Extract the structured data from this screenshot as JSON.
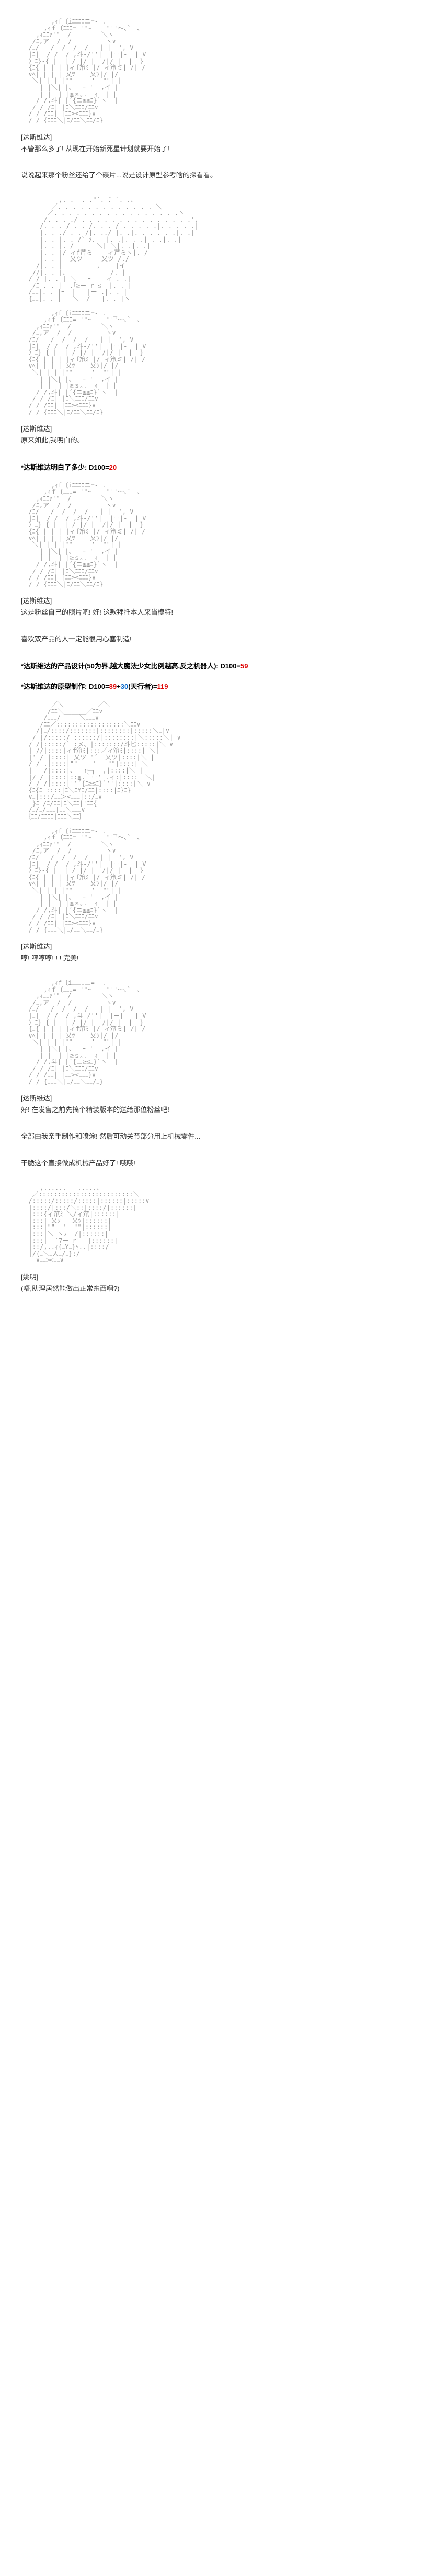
{
  "ascii": {
    "girl_headband": "        ,ｨf〔iﾆﾆﾆﾆニ=- .  _\n      ,ｨｆ〔ﾆﾆﾆ= '\"~    \"''〜､`　､\n    ,ｨﾆﾆｧ'\"  /        ＼ヽ\n   /ﾆ,ア  /  /         ヽ∨\n  /ﾆ/   /  /  /  /|  | |  ', V\n  |ﾆ|  / /  / ,斗-/''|  |ー|-  | V\n  〉ﾆ}-{ |  | / |/ |  /|/ |  |  }\n  {ﾆ{ | | | |ィf笊ﾐ |/ ィ笊ミ| /| /\n  ∨ﾍ| | | | 乂ﾂ    乂ﾂ|/ |/\n   ＼| | | |\"\"     '  \"\"| |\n     | |＼| |、  ｰ '  ,イ |\n     | |  | |≧ｓ｡.  ｨ  | |\n    / /,斗| |´{ニ≧≦ﾆ}`ヽ| |\n   / / /ﾆ| |ﾆ＼ﾆﾆﾆ/ﾆﾆ∨\n  / / /ﾆﾆ| |ﾆﾆ><ﾆﾆﾆ}∨\n  / / {ﾆﾆﾆ＼|ﾆ/ﾆﾆ＼ﾆﾆ/ﾆ}",
    "boy_profile": "          ,. .-‐. .\"´. ̄. `. .、\n        ／. . . . . . . . . . . . . ＼\n       ／. . . . . . . . . . . . . . . . .ヽ\n      /. . . ./ . . . . . . . . . . . . . . .',\n     /. . . / . . /. . . /|. . . . .|. . . . .|\n     |. . ./ . . /|. ../ |. .|. . .|. . .|. .|\n     |. . |. . /`|ﾒ、  |. .|. ._.|_. .|. .|\n     |. . |. /      ＼| ＼|. .|. .|\n     |. . |/ ィf芹ミ    ィ芹ミヽ|. /\n     |. . |  乂ツ     乂ツ /./\n    /|. . |         ,    |イ\n   //|. . |、           /. |\n  / /_|. . | ＼   ｰ‐   ィ . .|\n   /ﾆ|. . |  .｢≧ー r ≦  |. . |\n  /ﾆﾆ|. . |ｰ‐-|   |ー-.|. . |\n  {ﾆﾆ|. . |   ＼  /   |. . |ヽ",
    "mecha_pose": "        ／＼         ／＼\n       /ﾆﾆ＼______／ﾆﾆ∨\n      /ﾆﾆﾆ/     ＼ﾆﾆﾆ∨\n     /ﾆﾆ／::::::::::::::::::＼ﾆﾆ∨\n    /|ﾆ/::::/:::::::|::::::::|:::::＼ﾆ|∨\n   / |/:::::/|::::::/|::::::::|＼:::::＼| ∨\n  / /|:::::/`|:メ、|:::::::/斗匕:::::|＼ ∨\n  | //|::::|ィf笊ﾐ|:::／ィ笊ﾐ|::::| ＼|\n  |' / |::::| 乂ツ '´  乂ツ|::::|＼ |\n  / / .|::::|\"\"    '   \"\"|::::| ＼\n  | | /|::::|、  r─┐  ,|::::|＼ |\n  |/ / |::::|::≧.｀ー' .ィ:|::::| ＼|\n  / /_/|::::|''´{ﾆ≧≦ﾆ}`''|::::|＼_∨\n  {ﾆ{ﾆ|::::|ﾆ＼ﾆYﾆ/ﾆﾆ|::::|ﾆ}ﾆ}\n  ∨ﾆ|:::/ﾆﾆ＞<ﾆﾆﾆ|::/ﾆ∨\n   }ﾆ|/ﾆ/ﾆﾆ|ﾆ＼ﾆﾆ|'ﾆﾆ{\n  /ﾆ/ﾆ/ﾆﾆﾆ|ﾆﾆ＼ﾆﾆﾆ∨\n ｛ﾆﾆ/ﾆﾆﾆﾆ|ﾆﾆﾆ＼ﾆﾆ｝",
    "chibi_small": "     ,......-‐-.....、\n   ／:::::::::::::::::::::::::＼\n  /:::::/:::::/:::::|::::::|:::::∨\n  |::::/|:::/＼::|::::/|::::::|\n  |:::{ィ笊ﾐ ＼/ィ笊|::::::|\n  |:::| 乂ﾂ   乂ﾂ|::::::|\n  |:::|\"\"  '  \"\"|::::::|\n  |:::|＼ ヽﾌ  /|::::::|\n  |:::|  `7ー r'  |::::::|\n  |::/,..ｨ{ﾆYﾆ}ｬ..|::::/\n  |/{ﾆ＼ﾆ人ﾆ/ﾆ}:/\n    ∨ﾆﾆ><ﾆﾆ∨"
  },
  "blocks": [
    {
      "type": "art",
      "key": "girl_headband"
    },
    {
      "type": "line",
      "speaker": "[达斯维达]",
      "text": "不管那么多了! 从现在开始新死星计划就要开始了!"
    },
    {
      "type": "line",
      "speaker": "",
      "text": "说说起来那个粉丝还给了个碟片...说是设计原型参考啥的探看看。"
    },
    {
      "type": "art",
      "key": "boy_profile"
    },
    {
      "type": "art",
      "key": "girl_headband"
    },
    {
      "type": "line",
      "speaker": "[达斯维达]",
      "text": "原来如此,我明白的。"
    },
    {
      "type": "roll",
      "prefix": "*达斯维达明白了多少: D100=",
      "value": "20"
    },
    {
      "type": "art",
      "key": "girl_headband"
    },
    {
      "type": "line",
      "speaker": "[达斯维达]",
      "text": "这是粉丝自己的照片吧! 好! 这款拜托本人来当模特!"
    },
    {
      "type": "line",
      "speaker": "",
      "text": "喜欢双产品的人一定能很用心塞制造!"
    },
    {
      "type": "roll",
      "prefix": "*达斯维达的产品设计(50为界,越大魔法少女比例越高,反之机器人): D100=",
      "value": "59"
    },
    {
      "type": "roll_combo",
      "prefix": "*达斯维达的原型制作: D100=",
      "v1": "89",
      "mid": "+",
      "v2": "30",
      "suffix": "(天行者)=",
      "total": "119"
    },
    {
      "type": "art",
      "key": "mecha_pose"
    },
    {
      "type": "art",
      "key": "girl_headband"
    },
    {
      "type": "line",
      "speaker": "[达斯维达]",
      "text": "哼! 哼哼哼! ! ! 完美!"
    },
    {
      "type": "art",
      "key": "girl_headband"
    },
    {
      "type": "line",
      "speaker": "[达斯维达]",
      "text": "好! 在发售之前先搞个精装版本的送给那位粉丝吧!"
    },
    {
      "type": "line",
      "speaker": "",
      "text": "全部由我亲手制作和喷涂! 然后可动关节部分用上机械零件..."
    },
    {
      "type": "line",
      "speaker": "",
      "text": "干脆这个直接做成机械产品好了! 哦哦!"
    },
    {
      "type": "art",
      "key": "chibi_small"
    },
    {
      "type": "line",
      "speaker": "[姚明]",
      "text": "(唔,助理居然能做出正常东西啊?)"
    }
  ]
}
